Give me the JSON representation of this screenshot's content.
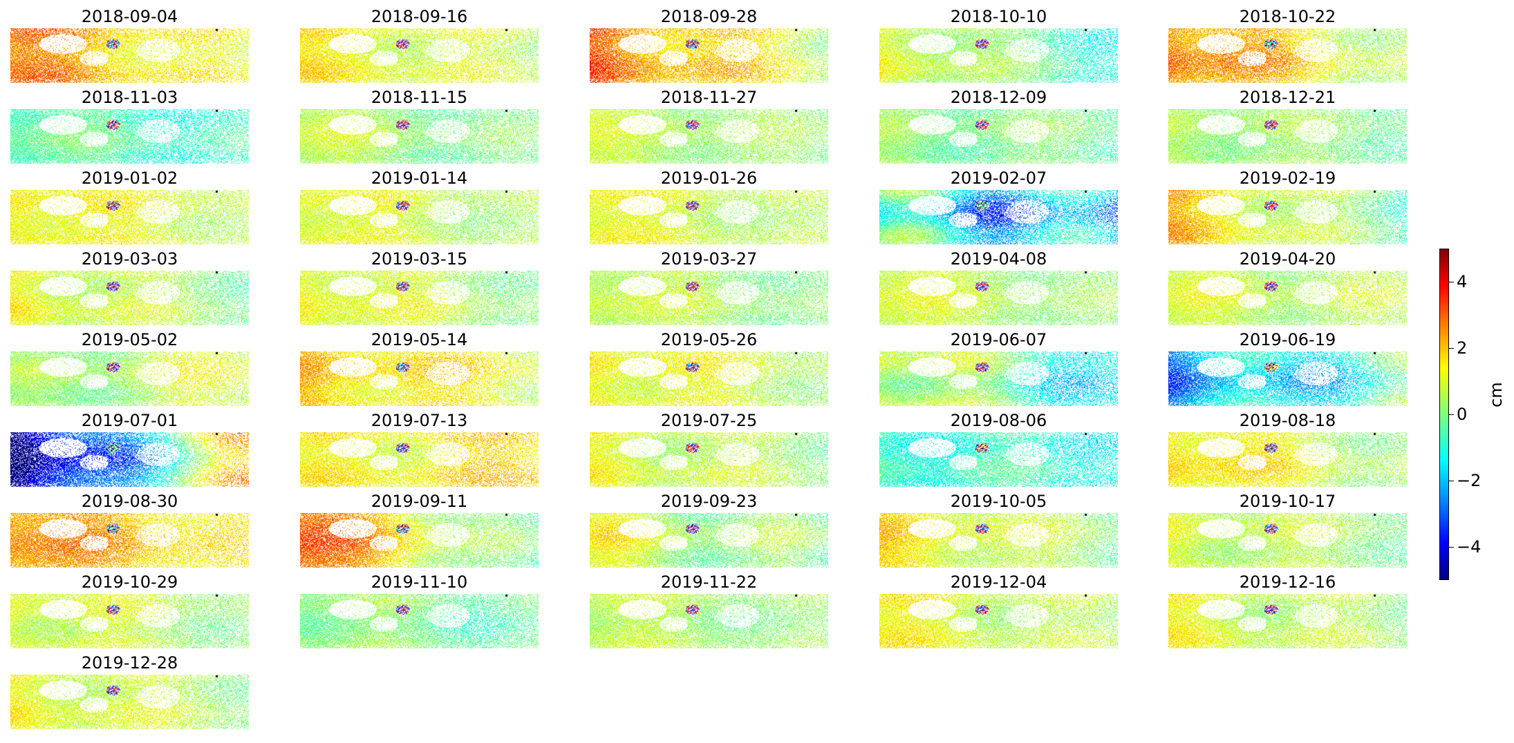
{
  "chart_data": {
    "type": "heatmap",
    "layout": {
      "columns": 5,
      "rows": 9
    },
    "panels": [
      {
        "title": "2018-09-04",
        "mean": 1.6,
        "west_bias": 0.6,
        "spread": 0.6
      },
      {
        "title": "2018-09-16",
        "mean": 0.9,
        "west_bias": 0.3,
        "spread": 0.5
      },
      {
        "title": "2018-09-28",
        "mean": 1.7,
        "west_bias": 0.7,
        "spread": 0.7
      },
      {
        "title": "2018-10-10",
        "mean": 0.1,
        "west_bias": 0.7,
        "spread": 0.5
      },
      {
        "title": "2018-10-22",
        "mean": 1.6,
        "west_bias": 0.8,
        "spread": 0.7
      },
      {
        "title": "2018-11-03",
        "mean": -0.5,
        "west_bias": 0.2,
        "spread": 0.5
      },
      {
        "title": "2018-11-15",
        "mean": 0.2,
        "west_bias": 0.3,
        "spread": 0.5
      },
      {
        "title": "2018-11-27",
        "mean": 0.4,
        "west_bias": 0.2,
        "spread": 0.4
      },
      {
        "title": "2018-12-09",
        "mean": 0.0,
        "west_bias": 0.1,
        "spread": 0.5
      },
      {
        "title": "2018-12-21",
        "mean": 0.2,
        "west_bias": 0.2,
        "spread": 0.4
      },
      {
        "title": "2019-01-02",
        "mean": 1.0,
        "west_bias": 0.3,
        "spread": 0.4
      },
      {
        "title": "2019-01-14",
        "mean": 0.7,
        "west_bias": 0.3,
        "spread": 0.4
      },
      {
        "title": "2019-01-26",
        "mean": 0.7,
        "west_bias": 0.3,
        "spread": 0.4
      },
      {
        "title": "2019-02-07",
        "mean": -1.8,
        "west_bias": 0.5,
        "spread": 1.8
      },
      {
        "title": "2019-02-19",
        "mean": 0.7,
        "west_bias": 0.8,
        "spread": 0.6
      },
      {
        "title": "2019-03-03",
        "mean": 0.6,
        "west_bias": 0.4,
        "spread": 0.5
      },
      {
        "title": "2019-03-15",
        "mean": 0.7,
        "west_bias": 0.4,
        "spread": 0.5
      },
      {
        "title": "2019-03-27",
        "mean": 0.4,
        "west_bias": 0.3,
        "spread": 0.4
      },
      {
        "title": "2019-04-08",
        "mean": 0.5,
        "west_bias": 0.3,
        "spread": 0.4
      },
      {
        "title": "2019-04-20",
        "mean": 0.6,
        "west_bias": 0.1,
        "spread": 0.5
      },
      {
        "title": "2019-05-02",
        "mean": 0.5,
        "west_bias": -0.3,
        "spread": 0.6
      },
      {
        "title": "2019-05-14",
        "mean": 1.4,
        "west_bias": 0.3,
        "spread": 0.6
      },
      {
        "title": "2019-05-26",
        "mean": 0.9,
        "west_bias": 0.3,
        "spread": 0.5
      },
      {
        "title": "2019-06-07",
        "mean": -0.3,
        "west_bias": 0.9,
        "spread": 1.0
      },
      {
        "title": "2019-06-19",
        "mean": -1.5,
        "west_bias": -0.6,
        "spread": 1.2
      },
      {
        "title": "2019-07-01",
        "mean": -2.0,
        "west_bias": -2.5,
        "spread": 1.2
      },
      {
        "title": "2019-07-13",
        "mean": 1.3,
        "west_bias": -0.2,
        "spread": 0.6
      },
      {
        "title": "2019-07-25",
        "mean": 0.6,
        "west_bias": 0.3,
        "spread": 0.5
      },
      {
        "title": "2019-08-06",
        "mean": -0.8,
        "west_bias": 0.1,
        "spread": 0.6
      },
      {
        "title": "2019-08-18",
        "mean": 1.0,
        "west_bias": 0.5,
        "spread": 0.6
      },
      {
        "title": "2019-08-30",
        "mean": 1.9,
        "west_bias": 0.4,
        "spread": 0.5
      },
      {
        "title": "2019-09-11",
        "mean": 1.2,
        "west_bias": 1.2,
        "spread": 0.7
      },
      {
        "title": "2019-09-23",
        "mean": 0.4,
        "west_bias": 0.4,
        "spread": 0.8
      },
      {
        "title": "2019-10-05",
        "mean": 0.8,
        "west_bias": 0.5,
        "spread": 0.5
      },
      {
        "title": "2019-10-17",
        "mean": 0.5,
        "west_bias": 0.3,
        "spread": 0.5
      },
      {
        "title": "2019-10-29",
        "mean": 0.6,
        "west_bias": 0.3,
        "spread": 0.5
      },
      {
        "title": "2019-11-10",
        "mean": -0.1,
        "west_bias": 0.2,
        "spread": 0.5
      },
      {
        "title": "2019-11-22",
        "mean": 0.3,
        "west_bias": 0.2,
        "spread": 0.4
      },
      {
        "title": "2019-12-04",
        "mean": 0.7,
        "west_bias": 0.3,
        "spread": 0.5
      },
      {
        "title": "2019-12-16",
        "mean": 0.6,
        "west_bias": 0.3,
        "spread": 0.5
      },
      {
        "title": "2019-12-28",
        "mean": 0.7,
        "west_bias": 0.3,
        "spread": 0.5
      }
    ],
    "colorbar": {
      "label": "cm",
      "vmin": -5,
      "vmax": 5,
      "ticks": [
        -4,
        -2,
        0,
        2,
        4
      ],
      "tick_labels": [
        "−4",
        "−2",
        "0",
        "2",
        "4"
      ],
      "colormap": "jet"
    }
  }
}
